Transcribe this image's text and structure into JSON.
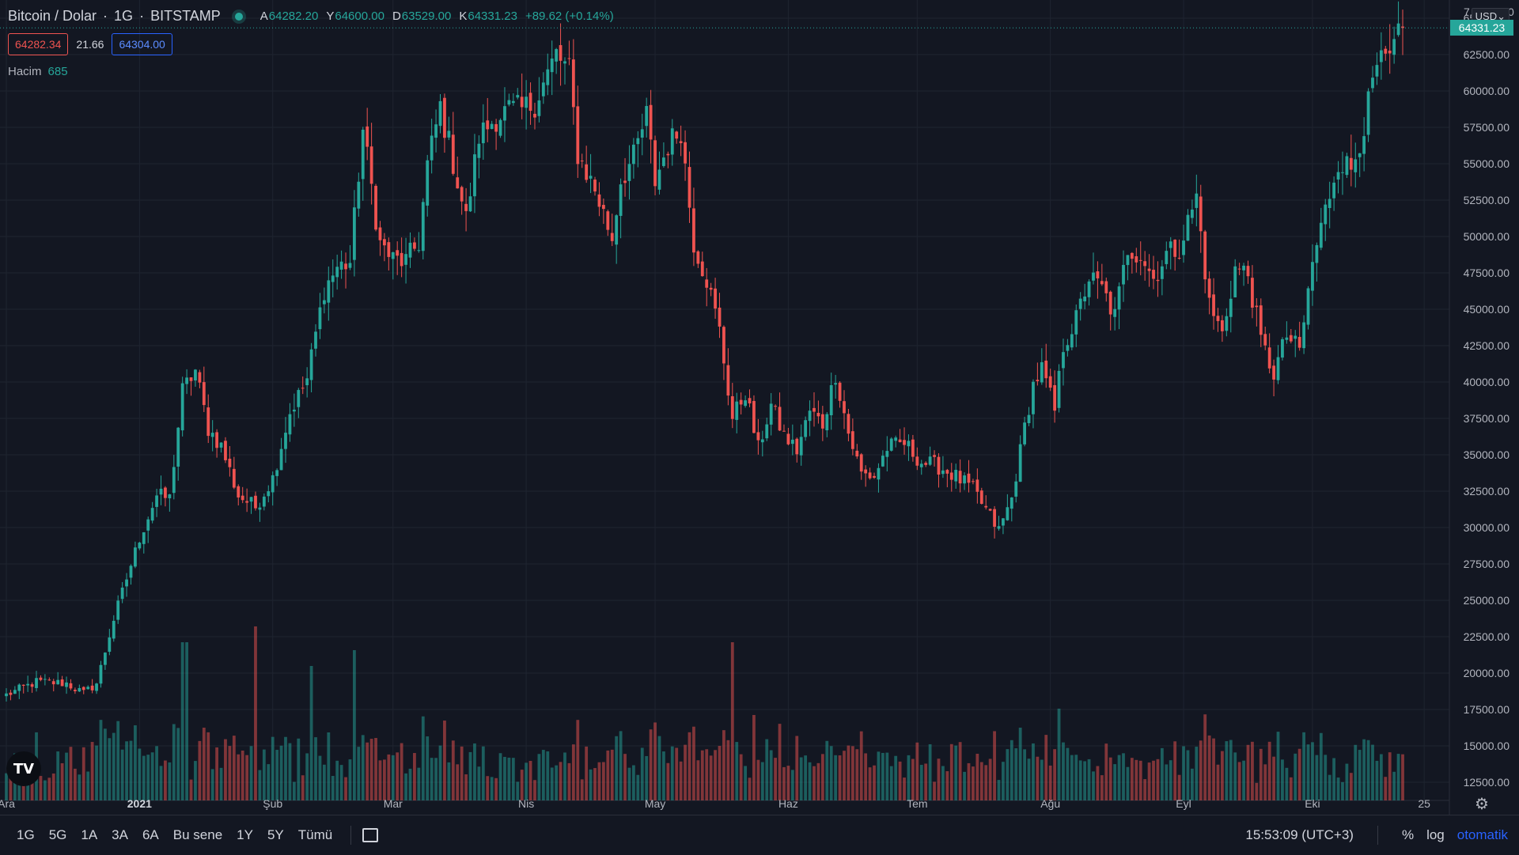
{
  "header": {
    "symbol_name": "Bitcoin / Dolar",
    "interval": "1G",
    "exchange": "BITSTAMP",
    "open_label": "A",
    "open_value": "64282.20",
    "high_label": "Y",
    "high_value": "64600.00",
    "low_label": "D",
    "low_value": "63529.00",
    "close_label": "K",
    "close_value": "64331.23",
    "change": "+89.62 (+0.14%)"
  },
  "quotes": {
    "bid": "64282.34",
    "spread": "21.66",
    "ask": "64304.00"
  },
  "volume": {
    "label": "Hacim",
    "value": "685"
  },
  "currency": "USD⌄",
  "last_price_tag": "64331.23",
  "top_partial_label": "7",
  "top_right_partial": "0",
  "logo": "TV",
  "bottom": {
    "ranges": [
      "1G",
      "5G",
      "1A",
      "3A",
      "6A",
      "Bu sene",
      "1Y",
      "5Y",
      "Tümü"
    ],
    "time": "15:53:09 (UTC+3)",
    "percent": "%",
    "log": "log",
    "auto": "otomatik"
  },
  "colors": {
    "up": "#26a69a",
    "down": "#ef5350",
    "background": "#131722",
    "grid": "#1f2430"
  },
  "chart_data": {
    "type": "candlestick",
    "title": "Bitcoin / Dolar · 1G · BITSTAMP",
    "xlabel": "",
    "ylabel": "",
    "ylim": [
      11250,
      66250
    ],
    "y_ticks": [
      12500,
      15000,
      17500,
      20000,
      22500,
      25000,
      27500,
      30000,
      32500,
      35000,
      37500,
      40000,
      42500,
      45000,
      47500,
      50000,
      52500,
      55000,
      57500,
      60000,
      62500,
      65000
    ],
    "y_tick_labels": [
      "12500.00",
      "15000.00",
      "17500.00",
      "20000.00",
      "22500.00",
      "25000.00",
      "27500.00",
      "30000.00",
      "32500.00",
      "35000.00",
      "37500.00",
      "40000.00",
      "42500.00",
      "45000.00",
      "47500.00",
      "50000.00",
      "52500.00",
      "55000.00",
      "57500.00",
      "60000.00",
      "62500.00",
      "65000.00"
    ],
    "x_tick_labels": [
      "Ara",
      "2021",
      "Şub",
      "Mar",
      "Nis",
      "May",
      "Haz",
      "Tem",
      "Ağu",
      "Eyl",
      "Eki",
      "25"
    ],
    "x_tick_day_index": [
      0,
      31,
      62,
      90,
      121,
      151,
      182,
      212,
      243,
      274,
      304,
      330
    ],
    "start_label": "Ara",
    "grid": true,
    "last_price": 64331.23,
    "close_anchors": [
      [
        0,
        18500
      ],
      [
        7,
        19400
      ],
      [
        14,
        19300
      ],
      [
        18,
        18600
      ],
      [
        21,
        19300
      ],
      [
        25,
        23700
      ],
      [
        31,
        29300
      ],
      [
        35,
        32200
      ],
      [
        38,
        32000
      ],
      [
        41,
        39400
      ],
      [
        44,
        40800
      ],
      [
        47,
        36800
      ],
      [
        50,
        35600
      ],
      [
        54,
        32200
      ],
      [
        58,
        31400
      ],
      [
        62,
        33400
      ],
      [
        66,
        37900
      ],
      [
        70,
        40200
      ],
      [
        74,
        46400
      ],
      [
        77,
        47900
      ],
      [
        80,
        48200
      ],
      [
        83,
        57300
      ],
      [
        87,
        49500
      ],
      [
        90,
        48400
      ],
      [
        93,
        48300
      ],
      [
        96,
        49600
      ],
      [
        98,
        54900
      ],
      [
        101,
        58900
      ],
      [
        104,
        55100
      ],
      [
        107,
        51200
      ],
      [
        110,
        56900
      ],
      [
        114,
        58200
      ],
      [
        117,
        58700
      ],
      [
        120,
        58700
      ],
      [
        123,
        59200
      ],
      [
        128,
        62500
      ],
      [
        131,
        61300
      ],
      [
        133,
        55700
      ],
      [
        137,
        53200
      ],
      [
        141,
        49900
      ],
      [
        143,
        53900
      ],
      [
        146,
        55400
      ],
      [
        149,
        58300
      ],
      [
        151,
        53800
      ],
      [
        154,
        56300
      ],
      [
        157,
        57400
      ],
      [
        160,
        49600
      ],
      [
        163,
        47100
      ],
      [
        166,
        43500
      ],
      [
        169,
        37500
      ],
      [
        172,
        39300
      ],
      [
        175,
        35400
      ],
      [
        178,
        38400
      ],
      [
        181,
        36300
      ],
      [
        184,
        35300
      ],
      [
        187,
        38000
      ],
      [
        190,
        37100
      ],
      [
        193,
        40600
      ],
      [
        196,
        36500
      ],
      [
        199,
        33700
      ],
      [
        202,
        33500
      ],
      [
        205,
        35500
      ],
      [
        209,
        35800
      ],
      [
        213,
        34500
      ],
      [
        217,
        34200
      ],
      [
        221,
        33500
      ],
      [
        225,
        32600
      ],
      [
        228,
        31200
      ],
      [
        231,
        29800
      ],
      [
        234,
        32000
      ],
      [
        237,
        36900
      ],
      [
        239,
        39800
      ],
      [
        241,
        40900
      ],
      [
        244,
        38000
      ],
      [
        246,
        42500
      ],
      [
        249,
        44300
      ],
      [
        252,
        47200
      ],
      [
        255,
        46400
      ],
      [
        258,
        44500
      ],
      [
        261,
        49200
      ],
      [
        264,
        48800
      ],
      [
        267,
        47100
      ],
      [
        270,
        48800
      ],
      [
        273,
        49300
      ],
      [
        277,
        52700
      ],
      [
        280,
        45300
      ],
      [
        283,
        43300
      ],
      [
        286,
        47800
      ],
      [
        289,
        47400
      ],
      [
        292,
        42800
      ],
      [
        295,
        40600
      ],
      [
        298,
        43200
      ],
      [
        301,
        42100
      ],
      [
        304,
        48200
      ],
      [
        307,
        51800
      ],
      [
        310,
        55300
      ],
      [
        313,
        54600
      ],
      [
        316,
        57700
      ],
      [
        319,
        61600
      ],
      [
        322,
        62100
      ],
      [
        325,
        64331
      ]
    ],
    "volume_note": "daily volume histogram in lower pane, colored by candle direction; largest spikes near Jan 11, Jan 28, May 19"
  }
}
